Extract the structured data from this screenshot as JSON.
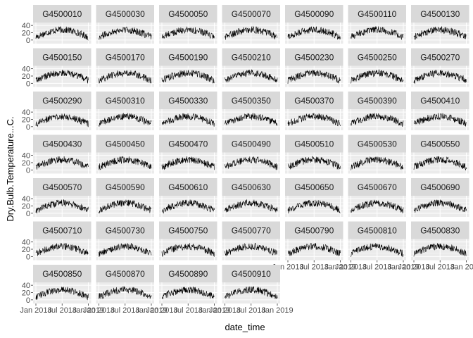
{
  "chart_data": {
    "type": "line",
    "layout": "facet_wrap",
    "ncol": 7,
    "xlabel": "date_time",
    "ylabel": "Dry.Bulb.Temperature...C.",
    "y_ticks": [
      0,
      20,
      40
    ],
    "ylim": [
      -10,
      48
    ],
    "x_tick_labels": [
      "Jan 2018",
      "Jul 2018",
      "Jan 2019"
    ],
    "x_domain": [
      "2018-01-01",
      "2019-01-01"
    ],
    "grid": true,
    "panel_background": "#ebebeb",
    "strip_background": "#d9d9d9",
    "line_color": "#000000",
    "series_profile": {
      "description_free": true,
      "winter_mean": 8,
      "summer_mean": 28,
      "diurnal_swing": 12
    },
    "panels": [
      "G4500010",
      "G4500030",
      "G4500050",
      "G4500070",
      "G4500090",
      "G4500110",
      "G4500130",
      "G4500150",
      "G4500170",
      "G4500190",
      "G4500210",
      "G4500230",
      "G4500250",
      "G4500270",
      "G4500290",
      "G4500310",
      "G4500330",
      "G4500350",
      "G4500370",
      "G4500390",
      "G4500410",
      "G4500430",
      "G4500450",
      "G4500470",
      "G4500490",
      "G4500510",
      "G4500530",
      "G4500550",
      "G4500570",
      "G4500590",
      "G4500610",
      "G4500630",
      "G4500650",
      "G4500670",
      "G4500690",
      "G4500710",
      "G4500730",
      "G4500750",
      "G4500770",
      "G4500790",
      "G4500810",
      "G4500830",
      "G4500850",
      "G4500870",
      "G4500890",
      "G4500910"
    ]
  }
}
